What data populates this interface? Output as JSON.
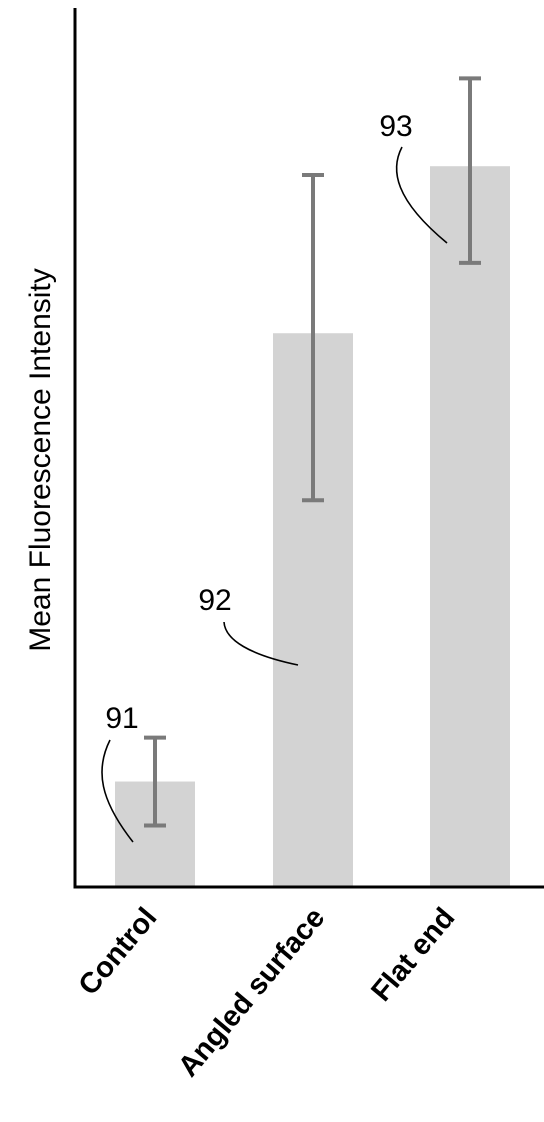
{
  "chart_data": {
    "type": "bar",
    "title": "",
    "xlabel": "",
    "ylabel": "Mean Fluorescence Intensity",
    "categories": [
      "Control",
      "Angled surface",
      "Flat end"
    ],
    "values": [
      12,
      63,
      82
    ],
    "error_low": [
      7,
      44,
      71
    ],
    "error_high": [
      17,
      81,
      92
    ],
    "ylim": [
      0,
      100
    ],
    "annotations": [
      "91",
      "92",
      "93"
    ],
    "grid": false,
    "bar_color": "#d3d3d3",
    "errorbar_color": "#7a7a7a"
  }
}
